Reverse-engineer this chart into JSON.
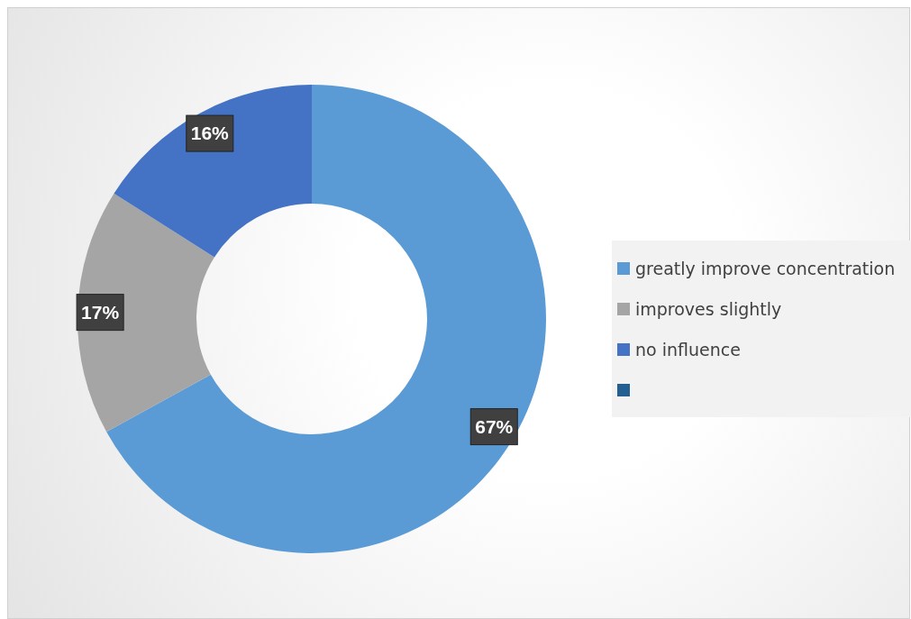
{
  "chart_data": {
    "type": "donut",
    "categories": [
      "greatly improve concentration",
      "improves slightly",
      "no influence",
      null
    ],
    "values": [
      67,
      17,
      16,
      0
    ],
    "colors": [
      "#5b9bd5",
      "#a5a5a5",
      "#4472c4",
      "#255e91"
    ],
    "value_labels": [
      "67%",
      "17%",
      "16%",
      null
    ],
    "legend": "right"
  }
}
